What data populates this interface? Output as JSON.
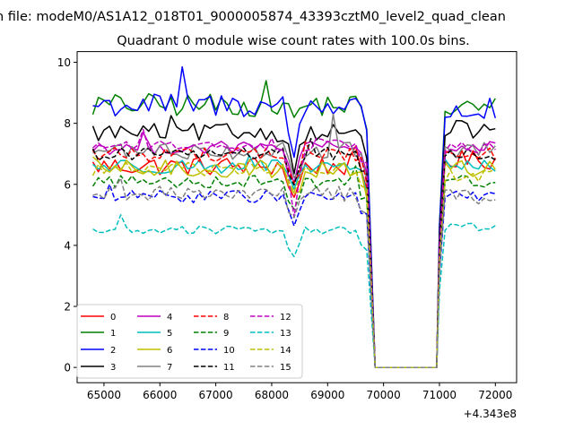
{
  "figure": {
    "suptitle": "n file: modeM0/AS1A12_018T01_9000005874_43393cztM0_level2_quad_clean"
  },
  "chart_data": {
    "type": "line",
    "title": "Quadrant 0 module wise count rates with 100.0s bins.",
    "xlabel": "",
    "ylabel": "",
    "x_offset_label": "+4.343e8",
    "xlim": [
      64520,
      72380
    ],
    "ylim": [
      -0.5,
      10.35
    ],
    "xticks": [
      65000,
      66000,
      67000,
      68000,
      69000,
      70000,
      71000,
      72000
    ],
    "xtick_labels": [
      "65000",
      "66000",
      "67000",
      "68000",
      "69000",
      "70000",
      "71000",
      "72000"
    ],
    "yticks": [
      0,
      2,
      4,
      6,
      8,
      10
    ],
    "ytick_labels": [
      "0",
      "2",
      "4",
      "6",
      "8",
      "10"
    ],
    "grid": false,
    "legend_placement": "lower-left",
    "legend_columns": 4,
    "x_segments": [
      [
        64800,
        69750
      ],
      [
        69850,
        70950
      ],
      [
        71000,
        72000
      ]
    ],
    "gap_rise_x": [
      69800
    ],
    "series": [
      {
        "name": "0",
        "color": "#ff0000",
        "style": "solid",
        "level": 6.6,
        "noise": 0.32,
        "dip_depth": 1.1,
        "gap_value": 0,
        "post_level": 6.8,
        "peak_value": 7.25
      },
      {
        "name": "1",
        "color": "#008000",
        "style": "solid",
        "level": 8.6,
        "noise": 0.38,
        "dip_depth": 0.4,
        "gap_value": 0,
        "post_level": 8.5,
        "peak_value": 9.4
      },
      {
        "name": "2",
        "color": "#0000ff",
        "style": "solid",
        "level": 8.6,
        "noise": 0.42,
        "dip_depth": 1.6,
        "gap_value": 0,
        "post_level": 8.4,
        "peak_value": 9.85
      },
      {
        "name": "3",
        "color": "#000000",
        "style": "solid",
        "level": 7.7,
        "noise": 0.3,
        "dip_depth": 1.2,
        "gap_value": 0,
        "post_level": 7.8,
        "peak_value": 8.25
      },
      {
        "name": "4",
        "color": "#bf00bf",
        "style": "solid",
        "level": 7.2,
        "noise": 0.22,
        "dip_depth": 1.0,
        "gap_value": 0,
        "post_level": 7.2,
        "peak_value": 7.7
      },
      {
        "name": "5",
        "color": "#00bfbf",
        "style": "solid",
        "level": 6.6,
        "noise": 0.25,
        "dip_depth": 1.0,
        "gap_value": 0,
        "post_level": 6.6,
        "peak_value": 6.95
      },
      {
        "name": "6",
        "color": "#bfbf00",
        "style": "solid",
        "level": 6.5,
        "noise": 0.3,
        "dip_depth": 1.0,
        "gap_value": 0,
        "post_level": 6.5,
        "peak_value": 6.9
      },
      {
        "name": "7",
        "color": "#808080",
        "style": "solid",
        "level": 7.1,
        "noise": 0.28,
        "dip_depth": 1.0,
        "gap_value": 0,
        "post_level": 7.1,
        "peak_value": 8.3
      },
      {
        "name": "8",
        "color": "#ff0000",
        "style": "dashed",
        "level": 7.0,
        "noise": 0.25,
        "dip_depth": 1.0,
        "gap_value": 0,
        "post_level": 7.0,
        "peak_value": 7.4
      },
      {
        "name": "9",
        "color": "#008000",
        "style": "dashed",
        "level": 6.1,
        "noise": 0.22,
        "dip_depth": 0.9,
        "gap_value": 0,
        "post_level": 6.1,
        "peak_value": 6.6
      },
      {
        "name": "10",
        "color": "#0000ff",
        "style": "dashed",
        "level": 5.6,
        "noise": 0.2,
        "dip_depth": 0.9,
        "gap_value": 0,
        "post_level": 5.6,
        "peak_value": 6.0
      },
      {
        "name": "11",
        "color": "#000000",
        "style": "dashed",
        "level": 7.0,
        "noise": 0.22,
        "dip_depth": 0.9,
        "gap_value": 0,
        "post_level": 7.0,
        "peak_value": 7.5
      },
      {
        "name": "12",
        "color": "#bf00bf",
        "style": "dashed",
        "level": 7.3,
        "noise": 0.22,
        "dip_depth": 2.2,
        "gap_value": 0,
        "post_level": 7.2,
        "peak_value": 7.8
      },
      {
        "name": "13",
        "color": "#00bfbf",
        "style": "dashed",
        "level": 4.5,
        "noise": 0.14,
        "dip_depth": 1.0,
        "gap_value": 0,
        "post_level": 4.6,
        "peak_value": 5.0
      },
      {
        "name": "14",
        "color": "#bfbf00",
        "style": "dashed",
        "level": 6.5,
        "noise": 0.22,
        "dip_depth": 0.9,
        "gap_value": 0,
        "post_level": 6.3,
        "peak_value": 6.8
      },
      {
        "name": "15",
        "color": "#808080",
        "style": "dashed",
        "level": 5.7,
        "noise": 0.25,
        "dip_depth": 0.9,
        "gap_value": 0,
        "post_level": 5.6,
        "peak_value": 6.2
      }
    ],
    "dip_x": 68400
  }
}
